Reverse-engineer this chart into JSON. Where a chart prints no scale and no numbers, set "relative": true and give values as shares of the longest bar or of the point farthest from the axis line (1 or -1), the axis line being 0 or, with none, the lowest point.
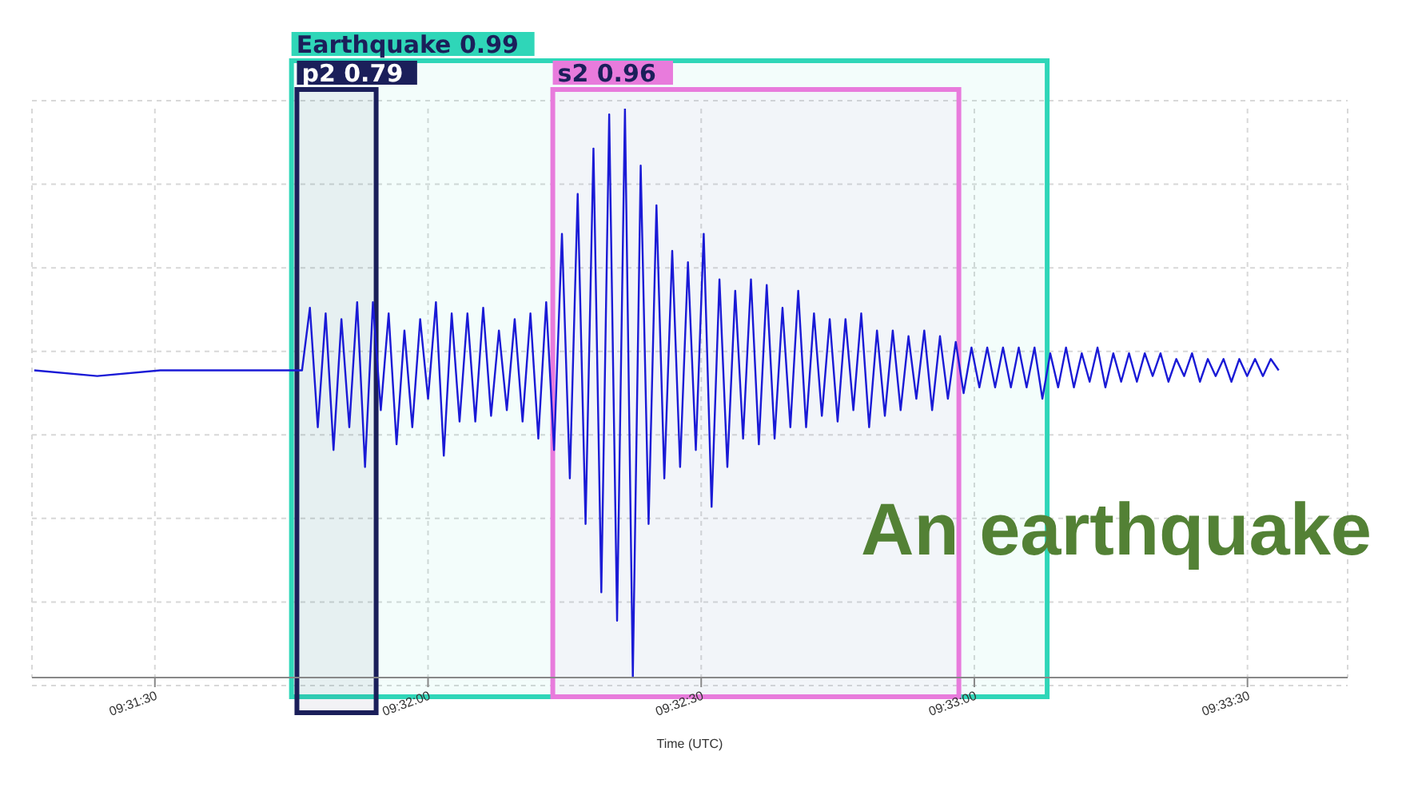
{
  "chart_data": {
    "type": "line",
    "relative": true,
    "xlabel": "Time (UTC)",
    "legend": false,
    "grid": true,
    "xlim": [
      9.52125,
      9.561389
    ],
    "xticks": [
      {
        "value": 9.525,
        "label": "09:31:30"
      },
      {
        "value": 9.533333,
        "label": "09:32:00"
      },
      {
        "value": 9.541667,
        "label": "09:32:30"
      },
      {
        "value": 9.55,
        "label": "09:33:00"
      },
      {
        "value": 9.558333,
        "label": "09:33:30"
      }
    ],
    "bands": [
      {
        "axis": "x",
        "from": 9.529167,
        "to": 9.552222,
        "label": "Earthquake 0.99",
        "color": "#2fd6b8"
      },
      {
        "axis": "x",
        "from": 9.529333,
        "to": 9.53175,
        "label": "p2 0.79",
        "color": "#1b1f5a"
      },
      {
        "axis": "x",
        "from": 9.537139,
        "to": 9.549528,
        "label": "s2 0.96",
        "color": "#e87bdc"
      }
    ],
    "annotations": [
      "An earthquake"
    ],
    "series": [
      {
        "color": "#1a1ad6",
        "x": [
          9.521319,
          9.523241,
          9.525164,
          9.527086,
          9.529009,
          9.529489,
          9.529729,
          9.52997,
          9.53021,
          9.53045,
          9.530691,
          9.530931,
          9.531171,
          9.531411,
          9.531652,
          9.531892,
          9.532132,
          9.532373,
          9.532613,
          9.532853,
          9.533093,
          9.533334,
          9.533574,
          9.533814,
          9.534055,
          9.534295,
          9.534535,
          9.534775,
          9.535016,
          9.535256,
          9.535496,
          9.535737,
          9.535977,
          9.536217,
          9.536457,
          9.536698,
          9.536938,
          9.537178,
          9.537419,
          9.537659,
          9.537899,
          9.538139,
          9.53838,
          9.53862,
          9.53886,
          9.539101,
          9.539341,
          9.539581,
          9.539821,
          9.540062,
          9.540302,
          9.540542,
          9.540783,
          9.541023,
          9.541263,
          9.541503,
          9.541744,
          9.541984,
          9.542224,
          9.542465,
          9.542705,
          9.542945,
          9.543185,
          9.543426,
          9.543666,
          9.543906,
          9.544147,
          9.544387,
          9.544627,
          9.544867,
          9.545108,
          9.545348,
          9.545588,
          9.545829,
          9.546069,
          9.546309,
          9.546549,
          9.54679,
          9.54703,
          9.54727,
          9.547511,
          9.547751,
          9.547991,
          9.548231,
          9.548472,
          9.548712,
          9.548952,
          9.549193,
          9.549433,
          9.549673,
          9.549913,
          9.550154,
          9.550394,
          9.550634,
          9.550875,
          9.551115,
          9.551355,
          9.551595,
          9.551836,
          9.552076,
          9.552316,
          9.552557,
          9.552797,
          9.553037,
          9.553277,
          9.553518,
          9.553758,
          9.553998,
          9.554239,
          9.554479,
          9.554719,
          9.554959,
          9.5552,
          9.55544,
          9.55568,
          9.555921,
          9.556161,
          9.556401,
          9.556641,
          9.556882,
          9.557122,
          9.557362,
          9.557603,
          9.557843,
          9.558083,
          9.558323,
          9.558564,
          9.558804,
          9.559044,
          9.559285
        ],
        "values": [
          0.54,
          0.53,
          0.54,
          0.54,
          0.54,
          0.54,
          0.65,
          0.44,
          0.64,
          0.4,
          0.63,
          0.44,
          0.66,
          0.37,
          0.66,
          0.47,
          0.64,
          0.41,
          0.61,
          0.44,
          0.63,
          0.49,
          0.66,
          0.39,
          0.64,
          0.45,
          0.64,
          0.45,
          0.65,
          0.46,
          0.61,
          0.47,
          0.63,
          0.45,
          0.64,
          0.42,
          0.66,
          0.4,
          0.78,
          0.35,
          0.85,
          0.27,
          0.93,
          0.15,
          0.99,
          0.1,
          1,
          0,
          0.9,
          0.27,
          0.83,
          0.35,
          0.75,
          0.37,
          0.73,
          0.4,
          0.78,
          0.3,
          0.7,
          0.37,
          0.68,
          0.42,
          0.7,
          0.41,
          0.69,
          0.42,
          0.65,
          0.44,
          0.68,
          0.44,
          0.64,
          0.46,
          0.63,
          0.45,
          0.63,
          0.47,
          0.64,
          0.44,
          0.61,
          0.46,
          0.61,
          0.47,
          0.6,
          0.49,
          0.61,
          0.47,
          0.6,
          0.49,
          0.59,
          0.5,
          0.58,
          0.51,
          0.58,
          0.51,
          0.58,
          0.51,
          0.58,
          0.51,
          0.58,
          0.49,
          0.57,
          0.51,
          0.58,
          0.51,
          0.57,
          0.52,
          0.58,
          0.51,
          0.57,
          0.52,
          0.57,
          0.52,
          0.57,
          0.53,
          0.57,
          0.52,
          0.56,
          0.53,
          0.57,
          0.52,
          0.56,
          0.53,
          0.56,
          0.52,
          0.56,
          0.53,
          0.56,
          0.53,
          0.56,
          0.54
        ]
      }
    ]
  }
}
